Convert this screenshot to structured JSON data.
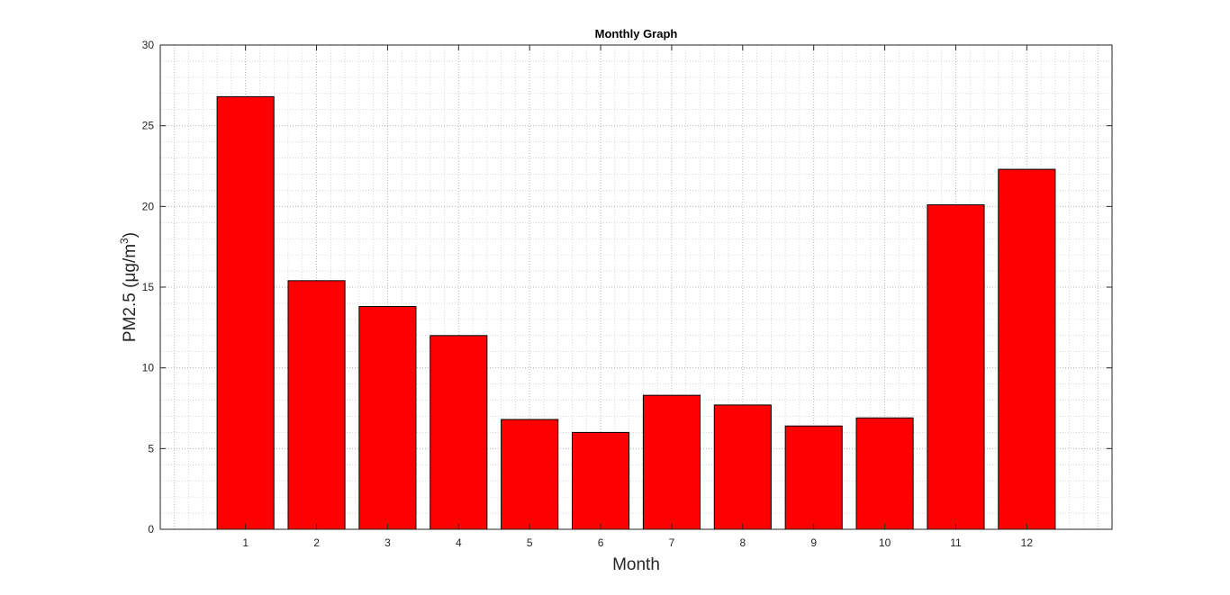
{
  "chart_data": {
    "type": "bar",
    "title": "Monthly Graph",
    "xlabel": "Month",
    "ylabel": {
      "main": "PM2.5 (μg/m",
      "superscript": "3",
      "close": ")"
    },
    "categories": [
      "1",
      "2",
      "3",
      "4",
      "5",
      "6",
      "7",
      "8",
      "9",
      "10",
      "11",
      "12"
    ],
    "values": [
      26.8,
      15.4,
      13.8,
      12.0,
      6.8,
      6.0,
      8.3,
      7.7,
      6.4,
      6.9,
      20.1,
      22.3
    ],
    "ylim": [
      0,
      30
    ],
    "yticks": [
      0,
      5,
      10,
      15,
      20,
      25,
      30
    ],
    "xlim": [
      -0.2,
      13.2
    ],
    "grid": true,
    "minor_grid": true,
    "legend": "none",
    "colors": {
      "bar_fill": "#ff0000",
      "bar_edge": "#000000",
      "axis": "#262626",
      "grid": "#bfbfbf"
    }
  }
}
